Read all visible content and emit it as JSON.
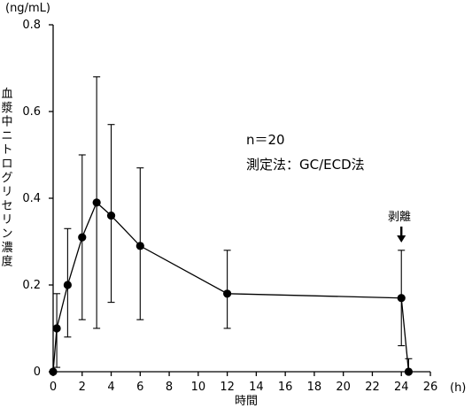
{
  "chart_data": {
    "type": "line",
    "y_unit": "(ng/mL)",
    "x_unit": "(h)",
    "xlabel": "時間",
    "ylabel": "血漿中ニトログリセリン濃度",
    "xlim": [
      0,
      26
    ],
    "ylim": [
      0,
      0.8
    ],
    "x_ticks": [
      0,
      2,
      4,
      6,
      8,
      10,
      12,
      14,
      16,
      18,
      20,
      22,
      24,
      26
    ],
    "y_ticks": [
      {
        "value": 0,
        "label": "0"
      },
      {
        "value": 0.2,
        "label": "0.2"
      },
      {
        "value": 0.4,
        "label": "0.4"
      },
      {
        "value": 0.6,
        "label": "0.6"
      },
      {
        "value": 0.8,
        "label": "0.8"
      }
    ],
    "annotation_n": "n＝20",
    "annotation_method": "測定法：GC/ECD法",
    "removal_label": "剥離",
    "removal_x": 24,
    "grid": false,
    "series": [
      {
        "x": [
          0,
          0.25,
          1,
          2,
          3,
          4,
          6,
          12,
          24,
          24.5
        ],
        "y": [
          0,
          0.1,
          0.2,
          0.31,
          0.39,
          0.36,
          0.29,
          0.18,
          0.17,
          0
        ],
        "y_low": [
          0,
          0.01,
          0.08,
          0.12,
          0.1,
          0.16,
          0.12,
          0.1,
          0.06,
          0
        ],
        "y_high": [
          0,
          0.18,
          0.33,
          0.5,
          0.68,
          0.57,
          0.47,
          0.28,
          0.28,
          0.03
        ]
      }
    ]
  }
}
